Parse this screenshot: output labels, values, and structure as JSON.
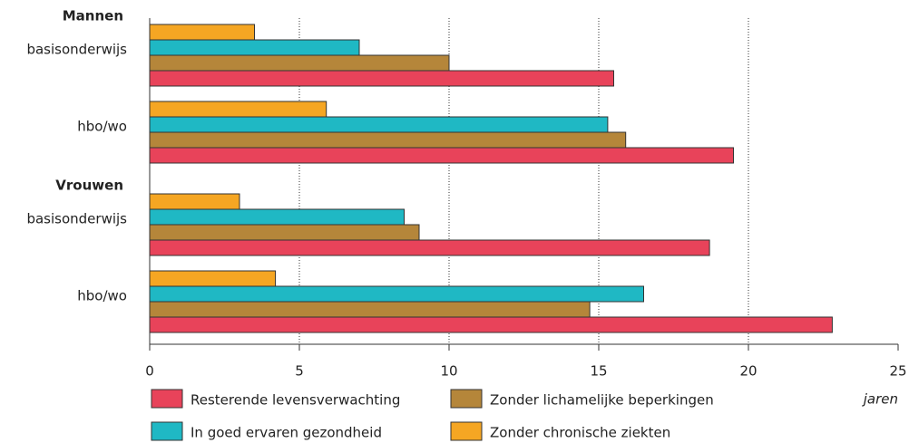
{
  "chart_data": {
    "type": "bar",
    "orientation": "horizontal",
    "group_labels": [
      "Mannen",
      null,
      "Vrouwen",
      null
    ],
    "categories": [
      "basisonderwijs",
      "hbo/wo",
      "basisonderwijs",
      "hbo/wo"
    ],
    "series": [
      {
        "name": "Resterende levensverwachting",
        "color": "#e8435a",
        "values": [
          15.5,
          19.5,
          18.7,
          22.8
        ]
      },
      {
        "name": "Zonder lichamelijke beperkingen",
        "color": "#b5863a",
        "values": [
          10.0,
          15.9,
          9.0,
          14.7
        ]
      },
      {
        "name": "In goed ervaren gezondheid",
        "color": "#1fb8c4",
        "values": [
          7.0,
          15.3,
          8.5,
          16.5
        ]
      },
      {
        "name": "Zonder chronische ziekten",
        "color": "#f5a623",
        "values": [
          3.5,
          5.9,
          3.0,
          4.2
        ]
      }
    ],
    "xlim": [
      0,
      25
    ],
    "xticks": [
      0,
      5,
      10,
      15,
      20,
      25
    ],
    "grid": true,
    "unit_label": "jaren"
  }
}
